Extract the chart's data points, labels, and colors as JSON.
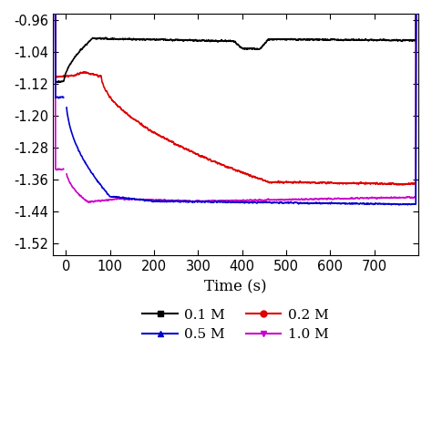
{
  "title": "",
  "xlabel": "Time (s)",
  "ylabel": "",
  "xlim": [
    -30,
    800
  ],
  "ylim": [
    -1.55,
    -0.945
  ],
  "yticks": [
    -1.52,
    -1.44,
    -1.36,
    -1.28,
    -1.2,
    -1.12,
    -1.04,
    -0.96
  ],
  "xticks": [
    0,
    100,
    200,
    300,
    400,
    500,
    600,
    700
  ],
  "colors": {
    "0.1M": "#000000",
    "0.2M": "#dd0000",
    "0.5M": "#0000cc",
    "1.0M": "#cc00cc"
  },
  "legend_labels": [
    "0.1 M",
    "0.2 M",
    "0.5 M",
    "1.0 M"
  ],
  "legend_markers": [
    "s",
    "o",
    "^",
    "v"
  ],
  "legend_colors": [
    "#000000",
    "#dd0000",
    "#0000cc",
    "#cc00cc"
  ],
  "background_color": "#ffffff",
  "linewidth": 1.2,
  "noise_std": 0.0025,
  "smooth_window": 10
}
